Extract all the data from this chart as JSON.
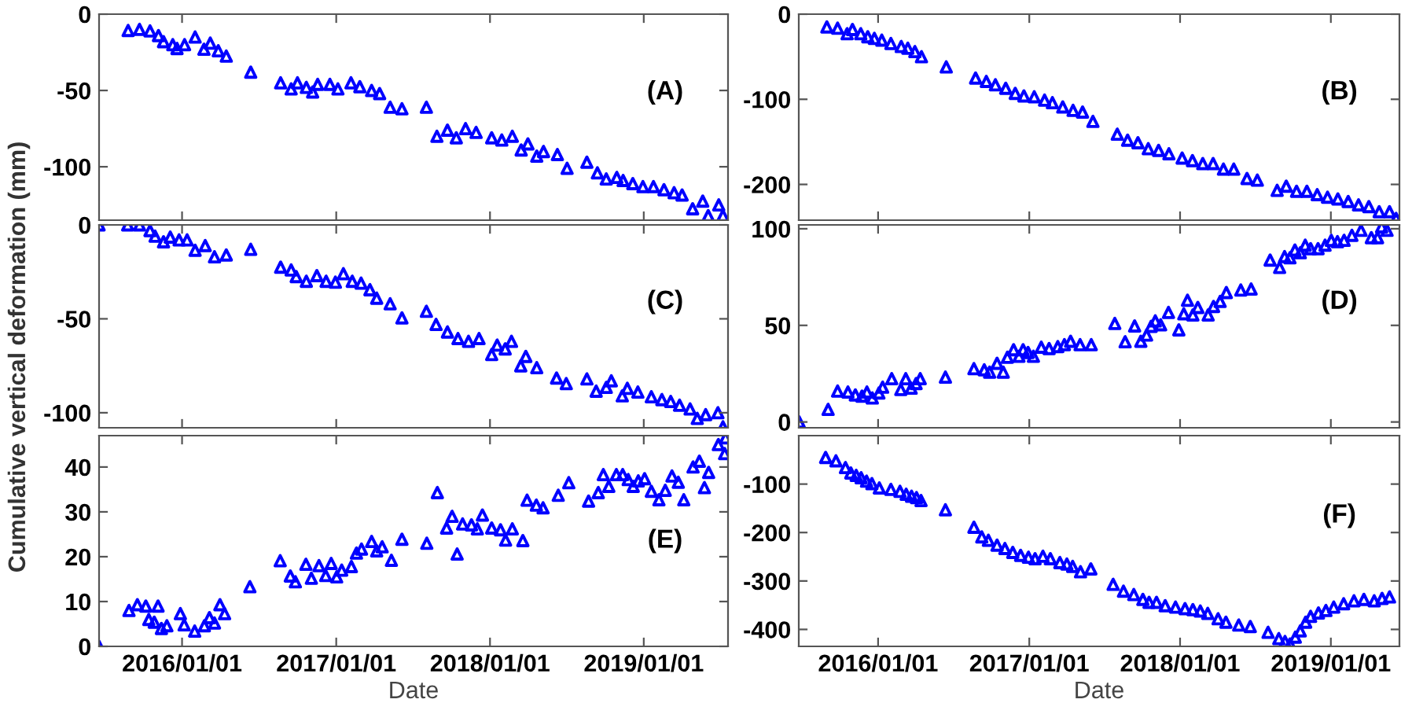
{
  "chart_data": [
    {
      "type": "scatter",
      "annotations": [
        "(A)"
      ],
      "color": "#0000ff",
      "marker": "triangle",
      "xlim": [
        "2015-06-18",
        "2019-07-20"
      ],
      "ylim": [
        -135,
        0
      ],
      "yticks": [
        -100,
        -50,
        0
      ],
      "tick_labels": "y",
      "xticks": [
        {
          "value": "2016-01-01",
          "label": null
        },
        {
          "value": "2017-01-01",
          "label": null
        },
        {
          "value": "2018-01-01",
          "label": null
        },
        {
          "value": "2019-01-01",
          "label": null
        }
      ],
      "x": [
        "2015-08-26",
        "2015-09-22",
        "2015-10-17",
        "2015-11-06",
        "2015-11-18",
        "2015-12-10",
        "2015-12-20",
        "2016-01-07",
        "2016-02-01",
        "2016-02-22",
        "2016-03-08",
        "2016-03-27",
        "2016-04-15",
        "2016-06-12",
        "2016-08-22",
        "2016-09-16",
        "2016-10-01",
        "2016-10-22",
        "2016-11-06",
        "2016-11-18",
        "2016-12-17",
        "2017-01-05",
        "2017-02-05",
        "2017-02-26",
        "2017-03-26",
        "2017-04-14",
        "2017-05-09",
        "2017-06-06",
        "2017-08-03",
        "2017-08-28",
        "2017-09-22",
        "2017-10-13",
        "2017-11-04",
        "2017-11-29",
        "2018-01-05",
        "2018-01-29",
        "2018-02-23",
        "2018-03-16",
        "2018-04-01",
        "2018-04-22",
        "2018-05-08",
        "2018-06-10",
        "2018-07-03",
        "2018-08-19",
        "2018-09-13",
        "2018-10-04",
        "2018-10-29",
        "2018-11-13",
        "2018-12-06",
        "2018-12-30",
        "2019-01-24",
        "2019-02-18",
        "2019-03-14",
        "2019-04-02",
        "2019-04-27",
        "2019-05-21",
        "2019-06-03",
        "2019-06-28",
        "2019-07-08"
      ],
      "values": [
        -10.7,
        -10,
        -11,
        -14,
        -18,
        -20,
        -22.5,
        -20,
        -15,
        -23,
        -19,
        -24,
        -27.5,
        -38,
        -45,
        -49,
        -45,
        -48,
        -51,
        -46,
        -46,
        -49,
        -45,
        -47.5,
        -50,
        -52,
        -61,
        -62,
        -61,
        -80,
        -76,
        -81,
        -75,
        -77.5,
        -81,
        -82.5,
        -80,
        -89,
        -85,
        -93,
        -90,
        -92,
        -101,
        -97,
        -104,
        -108,
        -107,
        -109,
        -111,
        -113,
        -113,
        -115,
        -117,
        -118.5,
        -127.5,
        -122.5,
        -132,
        -125,
        -132
      ]
    },
    {
      "type": "scatter",
      "annotations": [
        "(B)"
      ],
      "color": "#0000ff",
      "marker": "triangle",
      "xlim": [
        "2015-06-23",
        "2019-06-16"
      ],
      "ylim": [
        -242,
        0
      ],
      "yticks": [
        -200,
        -100,
        0
      ],
      "tick_labels": "y",
      "xticks": [
        {
          "value": "2016-01-01",
          "label": null
        },
        {
          "value": "2017-01-01",
          "label": null
        },
        {
          "value": "2018-01-01",
          "label": null
        },
        {
          "value": "2019-01-01",
          "label": null
        }
      ],
      "x": [
        "2015-08-30",
        "2015-09-25",
        "2015-10-18",
        "2015-10-31",
        "2015-11-20",
        "2015-12-07",
        "2015-12-23",
        "2016-01-10",
        "2016-02-01",
        "2016-02-26",
        "2016-03-13",
        "2016-03-30",
        "2016-04-15",
        "2016-06-14",
        "2016-08-24",
        "2016-09-19",
        "2016-10-11",
        "2016-11-05",
        "2016-11-28",
        "2016-12-19",
        "2017-01-13",
        "2017-02-07",
        "2017-02-26",
        "2017-03-23",
        "2017-04-17",
        "2017-05-10",
        "2017-06-04",
        "2017-08-02",
        "2017-08-27",
        "2017-09-21",
        "2017-10-16",
        "2017-11-10",
        "2017-12-05",
        "2018-01-06",
        "2018-01-31",
        "2018-02-25",
        "2018-03-22",
        "2018-04-16",
        "2018-05-11",
        "2018-06-12",
        "2018-07-07",
        "2018-08-24",
        "2018-09-15",
        "2018-10-10",
        "2018-11-04",
        "2018-11-29",
        "2018-12-24",
        "2019-01-18",
        "2019-02-12",
        "2019-03-09",
        "2019-04-03",
        "2019-04-28",
        "2019-05-23",
        "2019-06-08"
      ],
      "values": [
        -15,
        -16.5,
        -23,
        -18,
        -23,
        -26.5,
        -28.5,
        -30.5,
        -34.5,
        -38,
        -40,
        -44,
        -50,
        -62,
        -75,
        -79,
        -83,
        -87,
        -93,
        -96,
        -97,
        -101,
        -104,
        -109,
        -113,
        -115,
        -126,
        -141,
        -148,
        -151,
        -158,
        -160,
        -164,
        -169,
        -172,
        -175.5,
        -175.5,
        -182,
        -182,
        -193,
        -195,
        -207,
        -202,
        -208,
        -208,
        -212,
        -215,
        -217,
        -220,
        -224,
        -226,
        -232,
        -232,
        -240
      ]
    },
    {
      "type": "scatter",
      "annotations": [
        "(C)"
      ],
      "ylabel": "Cumulative vertical deformation (mm)",
      "color": "#0000ff",
      "marker": "triangle",
      "xlim": [
        "2015-06-18",
        "2019-07-20"
      ],
      "ylim": [
        -108,
        0
      ],
      "yticks": [
        -100,
        -50,
        0
      ],
      "tick_labels": "y",
      "xticks": [
        {
          "value": "2016-01-01",
          "label": null
        },
        {
          "value": "2017-01-01",
          "label": null
        },
        {
          "value": "2018-01-01",
          "label": null
        },
        {
          "value": "2019-01-01",
          "label": null
        }
      ],
      "x": [
        "2015-06-18",
        "2015-08-25",
        "2015-09-22",
        "2015-10-17",
        "2015-10-29",
        "2015-11-18",
        "2015-12-04",
        "2015-12-25",
        "2016-01-13",
        "2016-02-01",
        "2016-02-25",
        "2016-03-18",
        "2016-04-15",
        "2016-06-12",
        "2016-08-22",
        "2016-09-16",
        "2016-09-28",
        "2016-10-22",
        "2016-11-16",
        "2016-12-08",
        "2016-12-30",
        "2017-01-18",
        "2017-02-08",
        "2017-03-01",
        "2017-03-22",
        "2017-04-07",
        "2017-05-09",
        "2017-06-06",
        "2017-08-03",
        "2017-08-26",
        "2017-09-22",
        "2017-10-17",
        "2017-11-11",
        "2017-12-06",
        "2018-01-05",
        "2018-01-18",
        "2018-02-06",
        "2018-02-21",
        "2018-03-15",
        "2018-03-27",
        "2018-04-22",
        "2018-06-08",
        "2018-07-01",
        "2018-08-19",
        "2018-09-10",
        "2018-10-04",
        "2018-10-16",
        "2018-11-11",
        "2018-11-23",
        "2018-12-18",
        "2019-01-19",
        "2019-02-13",
        "2019-03-06",
        "2019-03-27",
        "2019-04-21",
        "2019-05-08",
        "2019-05-28",
        "2019-06-26",
        "2019-07-08"
      ],
      "values": [
        0,
        0,
        0,
        -3,
        -6,
        -9,
        -6.5,
        -8,
        -8,
        -13.5,
        -11,
        -17,
        -16,
        -13,
        -22.5,
        -24,
        -27.5,
        -30,
        -27,
        -30,
        -30.5,
        -26,
        -30,
        -31,
        -34.5,
        -39,
        -42,
        -49.5,
        -46,
        -53,
        -57,
        -60.5,
        -62,
        -60.5,
        -69,
        -64,
        -66,
        -62,
        -75,
        -70,
        -76,
        -81.5,
        -84.5,
        -82,
        -88.5,
        -86.5,
        -83,
        -91,
        -87,
        -89,
        -91.5,
        -93,
        -94,
        -96,
        -98,
        -103,
        -101,
        -100,
        -107.5
      ]
    },
    {
      "type": "scatter",
      "annotations": [
        "(D)"
      ],
      "color": "#0000ff",
      "marker": "triangle",
      "xlim": [
        "2015-06-23",
        "2019-06-16"
      ],
      "ylim": [
        -3,
        102
      ],
      "yticks": [
        0,
        50,
        100
      ],
      "tick_labels": "y",
      "xticks": [
        {
          "value": "2016-01-01",
          "label": null
        },
        {
          "value": "2017-01-01",
          "label": null
        },
        {
          "value": "2018-01-01",
          "label": null
        },
        {
          "value": "2019-01-01",
          "label": null
        }
      ],
      "x": [
        "2015-06-24",
        "2015-09-02",
        "2015-09-25",
        "2015-10-20",
        "2015-11-07",
        "2015-11-23",
        "2015-12-05",
        "2015-12-18",
        "2016-01-03",
        "2016-01-12",
        "2016-02-03",
        "2016-02-25",
        "2016-03-08",
        "2016-03-21",
        "2016-04-02",
        "2016-04-12",
        "2016-06-12",
        "2016-08-20",
        "2016-09-14",
        "2016-09-27",
        "2016-10-15",
        "2016-10-30",
        "2016-11-09",
        "2016-11-24",
        "2016-12-07",
        "2016-12-17",
        "2016-12-29",
        "2017-01-11",
        "2017-01-30",
        "2017-02-18",
        "2017-03-11",
        "2017-03-27",
        "2017-04-11",
        "2017-05-04",
        "2017-05-31",
        "2017-07-27",
        "2017-08-21",
        "2017-09-13",
        "2017-09-28",
        "2017-10-12",
        "2017-10-23",
        "2017-11-02",
        "2017-11-15",
        "2017-12-04",
        "2017-12-29",
        "2018-01-10",
        "2018-01-19",
        "2018-02-01",
        "2018-02-13",
        "2018-03-10",
        "2018-03-23",
        "2018-04-08",
        "2018-04-23",
        "2018-05-28",
        "2018-06-22",
        "2018-08-07",
        "2018-08-30",
        "2018-09-11",
        "2018-09-24",
        "2018-10-06",
        "2018-10-19",
        "2018-10-31",
        "2018-11-13",
        "2018-12-01",
        "2018-12-18",
        "2019-01-02",
        "2019-01-17",
        "2019-02-02",
        "2019-02-21",
        "2019-03-15",
        "2019-04-09",
        "2019-04-24",
        "2019-05-04",
        "2019-05-17"
      ],
      "values": [
        0,
        6.5,
        16,
        15.5,
        14,
        13.4,
        15.5,
        12.4,
        15,
        18,
        22.4,
        16.8,
        22.4,
        17.5,
        19.9,
        22.4,
        23.2,
        27.6,
        27,
        25.8,
        30.4,
        25.8,
        33.5,
        37.4,
        34,
        37.4,
        36,
        34,
        38.7,
        38,
        39,
        40,
        41.8,
        40,
        40,
        51,
        41.5,
        49.7,
        41.8,
        45,
        49.5,
        52.3,
        50.3,
        56.7,
        47.7,
        56,
        63,
        55.4,
        59.3,
        55.4,
        59.8,
        62.4,
        67,
        68.3,
        68.8,
        83.8,
        80,
        85.6,
        85,
        89,
        87.6,
        91.5,
        89.7,
        89.7,
        91.5,
        94,
        93.3,
        94,
        96.6,
        99.2,
        95.4,
        95.4,
        101,
        99.2
      ]
    },
    {
      "type": "scatter",
      "annotations": [
        "(E)"
      ],
      "xlabel": "Date",
      "color": "#0000ff",
      "marker": "triangle",
      "xlim": [
        "2015-06-18",
        "2019-07-20"
      ],
      "ylim": [
        0,
        47
      ],
      "yticks": [
        0,
        10,
        20,
        30,
        40
      ],
      "xticks": [
        {
          "value": "2016-01-01",
          "label": "2016/01/01"
        },
        {
          "value": "2017-01-01",
          "label": "2017/01/01"
        },
        {
          "value": "2018-01-01",
          "label": "2018/01/01"
        },
        {
          "value": "2019-01-01",
          "label": "2019/01/01"
        }
      ],
      "x": [
        "2015-06-18",
        "2015-08-28",
        "2015-09-17",
        "2015-10-07",
        "2015-10-14",
        "2015-10-27",
        "2015-11-05",
        "2015-11-13",
        "2015-11-26",
        "2015-12-28",
        "2016-01-06",
        "2016-01-31",
        "2016-02-23",
        "2016-03-06",
        "2016-03-18",
        "2016-03-31",
        "2016-04-11",
        "2016-06-10",
        "2016-08-21",
        "2016-09-14",
        "2016-09-26",
        "2016-10-21",
        "2016-11-03",
        "2016-11-21",
        "2016-12-07",
        "2016-12-20",
        "2017-01-02",
        "2017-01-14",
        "2017-02-06",
        "2017-02-18",
        "2017-03-02",
        "2017-03-26",
        "2017-04-07",
        "2017-04-20",
        "2017-05-12",
        "2017-06-06",
        "2017-08-04",
        "2017-08-29",
        "2017-09-20",
        "2017-10-03",
        "2017-10-15",
        "2017-10-28",
        "2017-11-18",
        "2017-12-02",
        "2017-12-14",
        "2018-01-05",
        "2018-01-26",
        "2018-02-07",
        "2018-02-23",
        "2018-03-20",
        "2018-03-30",
        "2018-04-21",
        "2018-05-07",
        "2018-06-12",
        "2018-07-07",
        "2018-08-23",
        "2018-09-15",
        "2018-09-27",
        "2018-10-10",
        "2018-10-28",
        "2018-11-12",
        "2018-11-25",
        "2018-12-07",
        "2018-12-19",
        "2019-01-03",
        "2019-01-19",
        "2019-02-06",
        "2019-02-21",
        "2019-03-09",
        "2019-03-24",
        "2019-04-06",
        "2019-04-28",
        "2019-05-13",
        "2019-05-25",
        "2019-06-04",
        "2019-06-27",
        "2019-07-12",
        "2019-07-14"
      ],
      "values": [
        0,
        8,
        9.3,
        9,
        6,
        5.4,
        9,
        4,
        4.6,
        7.3,
        4.8,
        3.4,
        4.6,
        6.4,
        5.2,
        9.3,
        7.3,
        13.3,
        19.1,
        15.7,
        14.4,
        18.3,
        15.2,
        18,
        15.8,
        18.5,
        15.5,
        17,
        17.8,
        20.8,
        21.7,
        23.4,
        21.3,
        22.2,
        19.2,
        23.9,
        23,
        34.3,
        26.4,
        29,
        20.6,
        27.3,
        27.1,
        26.2,
        29.3,
        26.4,
        26,
        23.7,
        26.2,
        23.6,
        32.6,
        31.5,
        30.9,
        33.7,
        36.5,
        32.4,
        34.3,
        38.3,
        35.7,
        38.3,
        38.3,
        37.2,
        35.7,
        36.9,
        37.4,
        34.6,
        32.7,
        34.8,
        38,
        36.6,
        32.7,
        40,
        41.3,
        35.4,
        38.8,
        45,
        43,
        46.5
      ]
    },
    {
      "type": "scatter",
      "annotations": [
        "(F)"
      ],
      "xlabel": "Date",
      "color": "#0000ff",
      "marker": "triangle",
      "xlim": [
        "2015-06-23",
        "2019-06-16"
      ],
      "ylim": [
        -435,
        0
      ],
      "yticks": [
        -400,
        -300,
        -200,
        -100
      ],
      "xticks": [
        {
          "value": "2016-01-01",
          "label": "2016/01/01"
        },
        {
          "value": "2017-01-01",
          "label": "2017/01/01"
        },
        {
          "value": "2018-01-01",
          "label": "2018/01/01"
        },
        {
          "value": "2019-01-01",
          "label": "2019/01/01"
        }
      ],
      "x": [
        "2015-08-27",
        "2015-09-21",
        "2015-10-14",
        "2015-10-27",
        "2015-11-09",
        "2015-11-21",
        "2015-12-04",
        "2015-12-17",
        "2016-01-04",
        "2016-02-01",
        "2016-02-23",
        "2016-03-09",
        "2016-03-22",
        "2016-04-03",
        "2016-04-14",
        "2016-06-12",
        "2016-08-20",
        "2016-09-08",
        "2016-09-24",
        "2016-10-15",
        "2016-11-03",
        "2016-11-22",
        "2016-12-11",
        "2016-12-30",
        "2017-01-15",
        "2017-02-03",
        "2017-02-21",
        "2017-03-16",
        "2017-04-02",
        "2017-04-16",
        "2017-05-05",
        "2017-05-30",
        "2017-07-23",
        "2017-08-17",
        "2017-09-11",
        "2017-10-03",
        "2017-10-18",
        "2017-11-05",
        "2017-11-26",
        "2017-12-21",
        "2018-01-13",
        "2018-02-01",
        "2018-02-19",
        "2018-03-09",
        "2018-04-03",
        "2018-04-22",
        "2018-05-23",
        "2018-06-20",
        "2018-08-02",
        "2018-08-28",
        "2018-09-12",
        "2018-09-24",
        "2018-10-07",
        "2018-10-19",
        "2018-11-01",
        "2018-11-13",
        "2018-12-02",
        "2018-12-20",
        "2019-01-08",
        "2019-02-01",
        "2019-02-26",
        "2019-03-22",
        "2019-04-16",
        "2019-05-05",
        "2019-05-23"
      ],
      "values": [
        -45,
        -52,
        -66,
        -77,
        -82,
        -87,
        -94,
        -99,
        -108,
        -111,
        -115,
        -121,
        -125,
        -128,
        -134,
        -153,
        -189,
        -209,
        -216,
        -226,
        -233,
        -241,
        -247,
        -251,
        -254,
        -249,
        -254,
        -262,
        -265,
        -270,
        -281,
        -275,
        -307,
        -321,
        -328,
        -338,
        -344,
        -344,
        -351,
        -354,
        -357,
        -359,
        -362,
        -367,
        -378,
        -385,
        -391,
        -394,
        -406,
        -419,
        -425,
        -430,
        -416,
        -403,
        -385,
        -373,
        -366,
        -361,
        -354,
        -347,
        -341,
        -338,
        -341,
        -336,
        -333
      ]
    }
  ]
}
